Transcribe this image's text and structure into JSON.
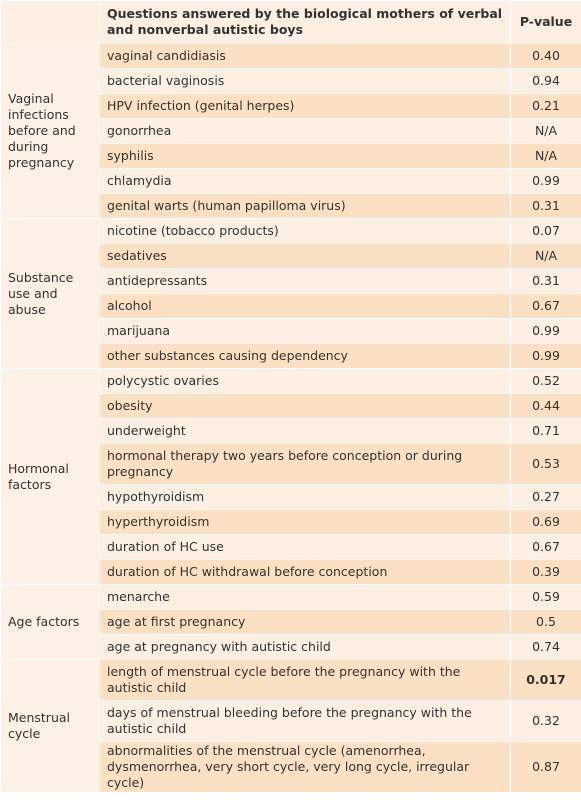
{
  "header": {
    "question": "Questions answered by the biological mothers of verbal and nonverbal autistic boys",
    "p_value": "P-value"
  },
  "groups": [
    {
      "label": "Vaginal infections before and during pregnancy",
      "rows": [
        {
          "question": "vaginal candidiasis",
          "p_value": "0.40"
        },
        {
          "question": "bacterial vaginosis",
          "p_value": "0.94"
        },
        {
          "question": "HPV infection (genital herpes)",
          "p_value": "0.21"
        },
        {
          "question": "gonorrhea",
          "p_value": "N/A"
        },
        {
          "question": "syphilis",
          "p_value": "N/A"
        },
        {
          "question": "chlamydia",
          "p_value": "0.99"
        },
        {
          "question": "genital warts (human papilloma virus)",
          "p_value": "0.31"
        }
      ]
    },
    {
      "label": "Substance use and abuse",
      "rows": [
        {
          "question": "nicotine (tobacco products)",
          "p_value": "0.07"
        },
        {
          "question": "sedatives",
          "p_value": "N/A"
        },
        {
          "question": "antidepressants",
          "p_value": "0.31"
        },
        {
          "question": "alcohol",
          "p_value": "0.67"
        },
        {
          "question": "marijuana",
          "p_value": "0.99"
        },
        {
          "question": "other substances causing dependency",
          "p_value": "0.99"
        }
      ]
    },
    {
      "label": "Hormonal factors",
      "rows": [
        {
          "question": "polycystic ovaries",
          "p_value": "0.52"
        },
        {
          "question": "obesity",
          "p_value": "0.44"
        },
        {
          "question": "underweight",
          "p_value": "0.71"
        },
        {
          "question": "hormonal therapy two years before conception or during pregnancy",
          "p_value": "0.53"
        },
        {
          "question": "hypothyroidism",
          "p_value": "0.27"
        },
        {
          "question": "hyperthyroidism",
          "p_value": "0.69"
        },
        {
          "question": "duration of HC use",
          "p_value": "0.67"
        },
        {
          "question": "duration of HC withdrawal before conception",
          "p_value": "0.39"
        }
      ]
    },
    {
      "label": "Age factors",
      "rows": [
        {
          "question": "menarche",
          "p_value": "0.59"
        },
        {
          "question": "age at first pregnancy",
          "p_value": "0.5"
        },
        {
          "question": "age at pregnancy with autistic child",
          "p_value": "0.74"
        }
      ]
    },
    {
      "label": "Menstrual cycle",
      "rows": [
        {
          "question": "length of menstrual cycle before the pregnancy with the autistic child",
          "p_value": "0.017"
        },
        {
          "question": "days of menstrual bleeding before the pregnancy with the autistic child",
          "p_value": "0.32"
        },
        {
          "question": "abnormalities of the menstrual cycle (amenorrhea, dysmenorrhea, very short cycle, very long cycle, irregular cycle)",
          "p_value": "0.87"
        }
      ]
    }
  ]
}
